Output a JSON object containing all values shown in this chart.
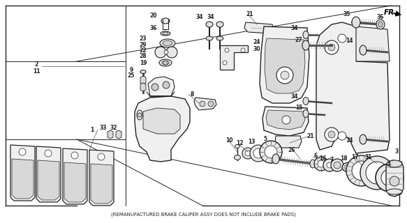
{
  "footnote": "(REMANUFACTURED BRAKE CALIPER ASSY DOES NOT INCLUDE BRAKE PADS)",
  "fr_label": "FR.",
  "background_color": "#ffffff",
  "fig_width": 5.83,
  "fig_height": 3.2,
  "dpi": 100,
  "lc": "#222222",
  "lw": 0.7
}
